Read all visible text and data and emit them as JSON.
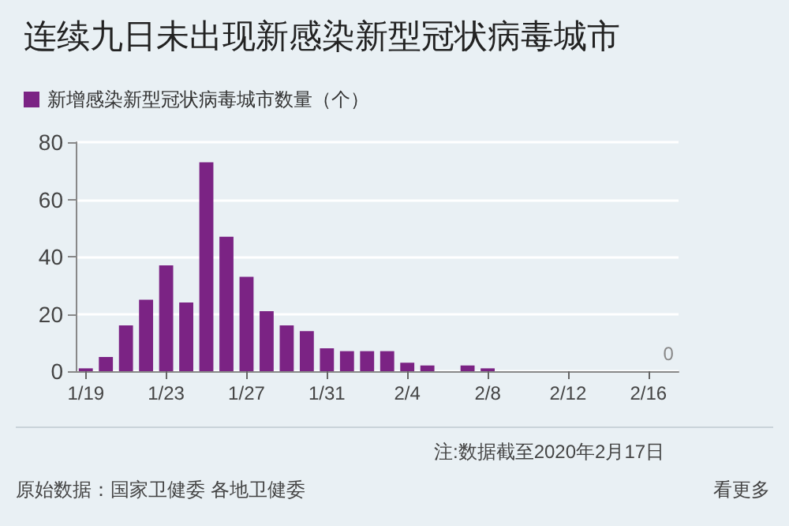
{
  "chart_data": {
    "type": "bar",
    "title": "连续九日未出现新感染新型冠状病毒城市",
    "categories": [
      "1/19",
      null,
      null,
      null,
      "1/23",
      null,
      null,
      null,
      "1/27",
      null,
      null,
      null,
      "1/31",
      null,
      null,
      null,
      "2/4",
      null,
      null,
      null,
      "2/8",
      null,
      null,
      null,
      "2/12",
      null,
      null,
      null,
      "2/16",
      null
    ],
    "series": [
      {
        "name": "新增感染新型冠状病毒城市数量（个）",
        "color": "#7b2384",
        "values": [
          1,
          5,
          16,
          25,
          37,
          24,
          73,
          47,
          33,
          21,
          16,
          14,
          8,
          7,
          7,
          7,
          3,
          2,
          0,
          2,
          1,
          0,
          0,
          0,
          0,
          0,
          0,
          0,
          0,
          0
        ],
        "value_labels": [
          null,
          null,
          null,
          null,
          null,
          null,
          null,
          null,
          null,
          null,
          null,
          null,
          null,
          null,
          null,
          null,
          null,
          null,
          null,
          null,
          null,
          null,
          null,
          null,
          null,
          null,
          null,
          null,
          null,
          "0"
        ]
      }
    ],
    "ylim": [
      0,
      80
    ],
    "yticks": [
      0,
      20,
      40,
      60,
      80
    ],
    "grid": "y",
    "legend": "top left",
    "annotations": [
      "注:数据截至2020年2月17日",
      "原始数据：国家卫健委 各地卫健委",
      "看更多"
    ]
  }
}
